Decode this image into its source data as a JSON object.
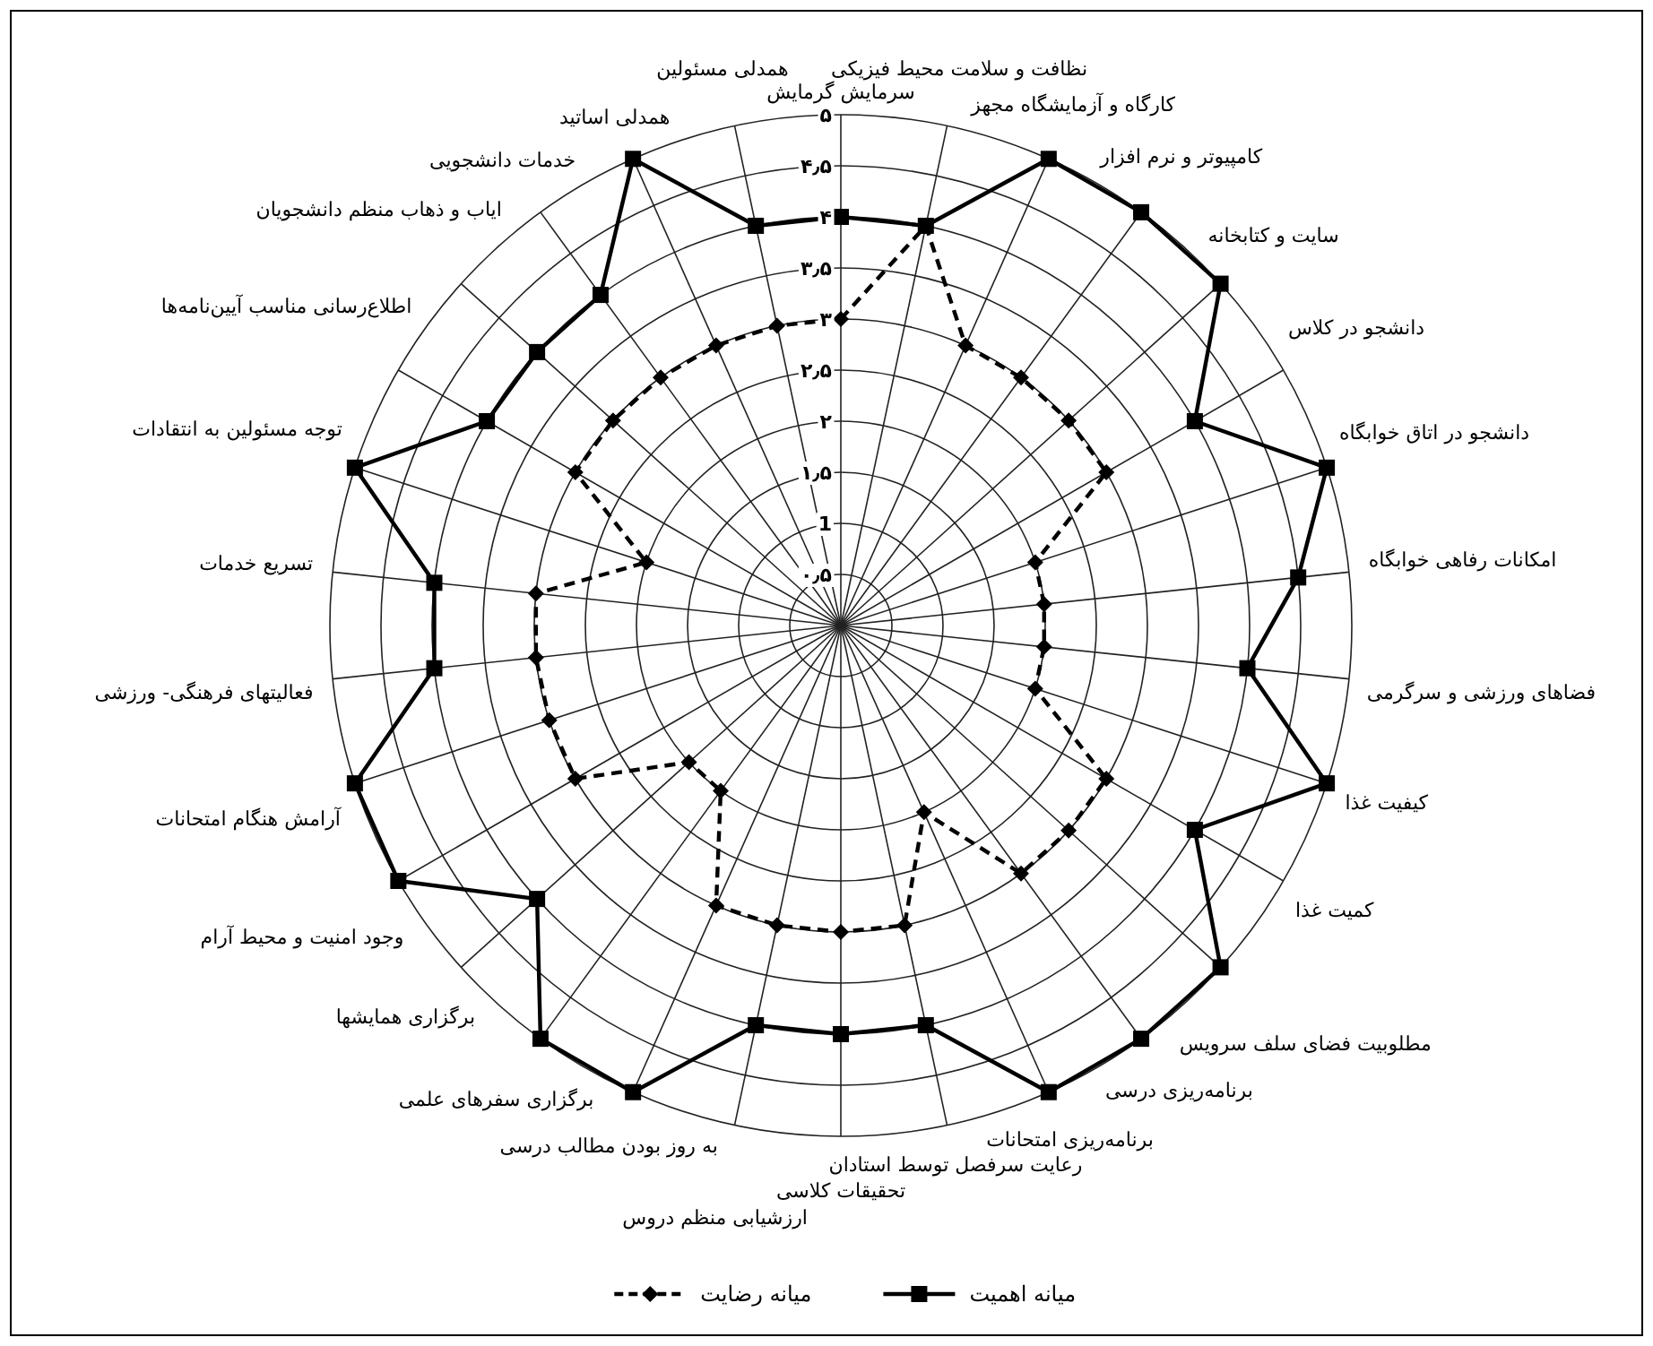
{
  "chart_data": {
    "type": "radar",
    "categories": [
      "سرمایش گرمایش",
      "نظافت و سلامت محیط فیزیکی",
      "کارگاه و آزمایشگاه مجهز",
      "کامپیوتر و نرم افزار",
      "سایت و کتابخانه",
      "دانشجو در کلاس",
      "دانشجو در اتاق خوابگاه",
      "امکانات رفاهی خوابگاه",
      "فضاهای ورزشی و سرگرمی",
      "کیفیت غذا",
      "کمیت غذا",
      "مطلوبیت فضای سلف سرویس",
      "برنامه‌ریزی درسی",
      "برنامه‌ریزی امتحانات",
      "رعایت سرفصل توسط استادان",
      "تحقیقات کلاسی",
      "ارزشیابی منظم دروس",
      "به روز بودن مطالب درسی",
      "برگزاری سفرهای علمی",
      "برگزاری همایشها",
      "وجود امنیت و محیط آرام",
      "آرامش هنگام امتحانات",
      "فعالیتهای فرهنگی- ورزشی",
      "تسریع خدمات",
      "توجه مسئولین به انتقادات",
      "اطلاع‌رسانی مناسب آیین‌نامه‌ها",
      "ایاب و ذهاب منظم دانشجویان",
      "خدمات دانشجویی",
      "همدلی اساتید",
      "همدلی مسئولین"
    ],
    "series": [
      {
        "name": "میانه اهمیت",
        "color": "#000000",
        "marker": "square",
        "line_style": "solid",
        "values": [
          4,
          4,
          5,
          5,
          5,
          4,
          5,
          4.5,
          4,
          5,
          4,
          5,
          5,
          5,
          4,
          4,
          4,
          5,
          5,
          4,
          5,
          5,
          4,
          4,
          5,
          4,
          4,
          4,
          5,
          4
        ]
      },
      {
        "name": "میانه رضایت",
        "color": "#000000",
        "marker": "diamond",
        "line_style": "dashed",
        "values": [
          3,
          4,
          3,
          3,
          3,
          3,
          2,
          2,
          2,
          2,
          3,
          3,
          3,
          2,
          3,
          3,
          3,
          3,
          2,
          2,
          3,
          3,
          3,
          3,
          2,
          3,
          3,
          3,
          3,
          3
        ]
      }
    ],
    "ylim": [
      0,
      5
    ],
    "yticks": [
      {
        "value": 0.5,
        "label": "۰٫۵"
      },
      1,
      {
        "value": 1.5,
        "label": "۱٫۵"
      },
      {
        "value": 2,
        "label": "۲"
      },
      {
        "value": 2.5,
        "label": "۲٫۵"
      },
      {
        "value": 3,
        "label": "۳"
      },
      {
        "value": 3.5,
        "label": "۳٫۵"
      },
      {
        "value": 4,
        "label": "۴"
      },
      {
        "value": 4.5,
        "label": "۴٫۵"
      },
      {
        "value": 5,
        "label": "۵"
      }
    ],
    "grid": true,
    "legend": "bottom"
  }
}
